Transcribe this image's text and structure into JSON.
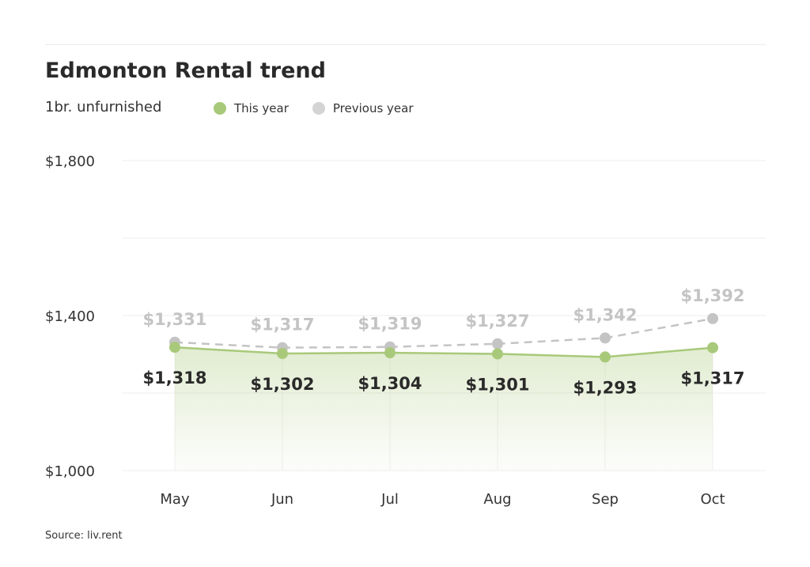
{
  "chart_data": {
    "type": "line",
    "title": "Edmonton Rental trend",
    "subtitle": "1br. unfurnished",
    "categories": [
      "May",
      "Jun",
      "Jul",
      "Aug",
      "Sep",
      "Oct"
    ],
    "yticks": [
      1000,
      1400,
      1800
    ],
    "ytick_labels": [
      "$1,000",
      "$1,400",
      "$1,800"
    ],
    "ylim": [
      1000,
      1800
    ],
    "grid": true,
    "legend_position": "top",
    "series": [
      {
        "name": "This year",
        "color": "#a8c97a",
        "style": "solid-area",
        "values": [
          1318,
          1302,
          1304,
          1301,
          1293,
          1317
        ],
        "labels": [
          "$1,318",
          "$1,302",
          "$1,304",
          "$1,301",
          "$1,293",
          "$1,317"
        ]
      },
      {
        "name": "Previous year",
        "color": "#c4c4c4",
        "style": "dashed",
        "values": [
          1331,
          1317,
          1319,
          1327,
          1342,
          1392
        ],
        "labels": [
          "$1,331",
          "$1,317",
          "$1,319",
          "$1,327",
          "$1,342",
          "$1,392"
        ]
      }
    ],
    "source": "Source: liv.rent"
  }
}
